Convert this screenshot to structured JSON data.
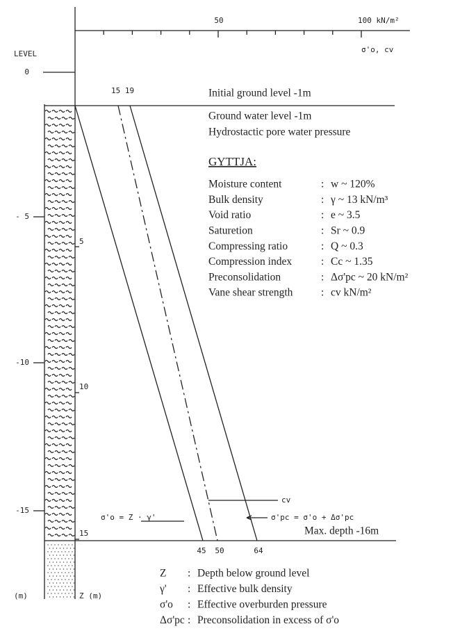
{
  "top_axis": {
    "mid_label": "50",
    "end_label": "100 kN/m²",
    "axis_label": "σ'o, cv"
  },
  "level_axis": {
    "title": "LEVEL",
    "labels": [
      "0",
      "- 5",
      "-10",
      "-15"
    ],
    "unit": "(m)"
  },
  "z_axis": {
    "labels": [
      "5",
      "10",
      "15"
    ],
    "unit": "Z (m)"
  },
  "top_values": "15 19",
  "bottom_values": [
    "45",
    "50",
    "64"
  ],
  "annotations": {
    "effective": "σ'o = Z · γ'",
    "preconsolidation": "σ'pc = σ'o + Δσ'pc",
    "vane": "cv"
  },
  "header": {
    "initial": "Initial ground level -1m",
    "water": "Ground water level -1m",
    "pore": "Hydrostactic pore water pressure"
  },
  "soil": {
    "title": "GYTTJA:",
    "rows": [
      {
        "label": "Moisture content",
        "value": "w ~ 120%"
      },
      {
        "label": "Bulk density",
        "value": "γ ~ 13 kN/m³"
      },
      {
        "label": "Void ratio",
        "value": "e ~ 3.5"
      },
      {
        "label": "Saturetion",
        "value": "Sr ~ 0.9"
      },
      {
        "label": "Compressing ratio",
        "value": "Q ~ 0.3"
      },
      {
        "label": "Compression index",
        "value": "Cc ~ 1.35"
      },
      {
        "label": "Preconsolidation",
        "value": "Δσ'pc ~ 20 kN/m²"
      },
      {
        "label": "Vane shear strength",
        "value": "cv kN/m²"
      }
    ]
  },
  "max_depth": "Max. depth -16m",
  "legend": [
    {
      "symbol": "Z",
      "text": "Depth below ground level"
    },
    {
      "symbol": "γ'",
      "text": "Effective bulk density"
    },
    {
      "symbol": "σ'o",
      "text": "Effective overburden pressure"
    },
    {
      "symbol": "Δσ'pc",
      "text": "Preconsolidation in excess of σ'o"
    }
  ]
}
